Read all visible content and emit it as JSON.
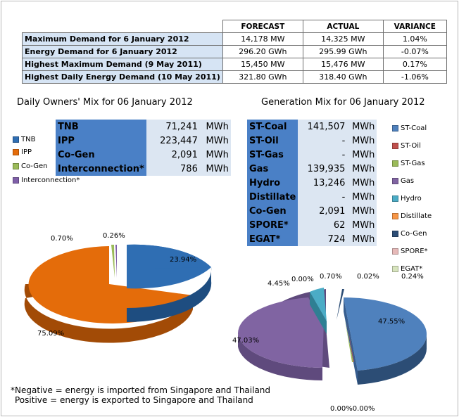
{
  "summary": {
    "headers": [
      "FORECAST",
      "ACTUAL",
      "VARIANCE"
    ],
    "rows": [
      {
        "label": "Maximum Demand for 6 January 2012",
        "forecast": "14,178  MW",
        "actual": "14,325  MW",
        "variance": "1.04%"
      },
      {
        "label": "Energy Demand for 6 January 2012",
        "forecast": "296.20  GWh",
        "actual": "295.99  GWh",
        "variance": "-0.07%"
      },
      {
        "label": "Highest Maximum Demand (9 May 2011)",
        "forecast": "15,450  MW",
        "actual": "15,476  MW",
        "variance": "0.17%"
      },
      {
        "label": "Highest Daily Energy Demand (10 May 2011)",
        "forecast": "321.80  GWh",
        "actual": "318.40  GWh",
        "variance": "-1.06%"
      }
    ]
  },
  "owners": {
    "title": "Daily Owners' Mix for 06 January 2012",
    "rows": [
      {
        "name": "TNB",
        "value": "71,241",
        "unit": "MWh"
      },
      {
        "name": "IPP",
        "value": "223,447",
        "unit": "MWh"
      },
      {
        "name": "Co-Gen",
        "value": "2,091",
        "unit": "MWh"
      },
      {
        "name": "Interconnection*",
        "value": "786",
        "unit": "MWh"
      }
    ],
    "legend": [
      {
        "label": "TNB",
        "color": "#2f6eb3"
      },
      {
        "label": "IPP",
        "color": "#e46c0a"
      },
      {
        "label": "Co-Gen",
        "color": "#9bbb59"
      },
      {
        "label": "Interconnection*",
        "color": "#7f5fa8"
      }
    ],
    "pie_labels": [
      "23.94%",
      "75.09%",
      "0.70%",
      "0.26%"
    ]
  },
  "generation": {
    "title": "Generation Mix for 06 January 2012",
    "rows": [
      {
        "name": "ST-Coal",
        "value": "141,507",
        "unit": "MWh"
      },
      {
        "name": "ST-Oil",
        "value": "-",
        "unit": "MWh"
      },
      {
        "name": "ST-Gas",
        "value": "-",
        "unit": "MWh"
      },
      {
        "name": "Gas",
        "value": "139,935",
        "unit": "MWh"
      },
      {
        "name": "Hydro",
        "value": "13,246",
        "unit": "MWh"
      },
      {
        "name": "Distillate",
        "value": "-",
        "unit": "MWh"
      },
      {
        "name": "Co-Gen",
        "value": "2,091",
        "unit": "MWh"
      },
      {
        "name": "SPORE*",
        "value": "62",
        "unit": "MWh"
      },
      {
        "name": "EGAT*",
        "value": "724",
        "unit": "MWh"
      }
    ],
    "legend": [
      {
        "label": "ST-Coal",
        "color": "#4f81bd"
      },
      {
        "label": "ST-Oil",
        "color": "#c0504d"
      },
      {
        "label": "ST-Gas",
        "color": "#9bbb59"
      },
      {
        "label": "Gas",
        "color": "#8064a2"
      },
      {
        "label": "Hydro",
        "color": "#4bacc6"
      },
      {
        "label": "Distillate",
        "color": "#f79646"
      },
      {
        "label": "Co-Gen",
        "color": "#2c4d75"
      },
      {
        "label": "SPORE*",
        "color": "#e6b9b8"
      },
      {
        "label": "EGAT*",
        "color": "#d7e4bd"
      }
    ],
    "pie_labels": [
      "47.55%",
      "47.03%",
      "4.45%",
      "0.00%",
      "0.70%",
      "0.02%",
      "0.24%",
      "0.00%0.00%"
    ]
  },
  "note": {
    "line1": "*Negative = energy is imported from Singapore and Thailand",
    "line2": "Positive = energy is exported to Singapore and Thailand"
  }
}
